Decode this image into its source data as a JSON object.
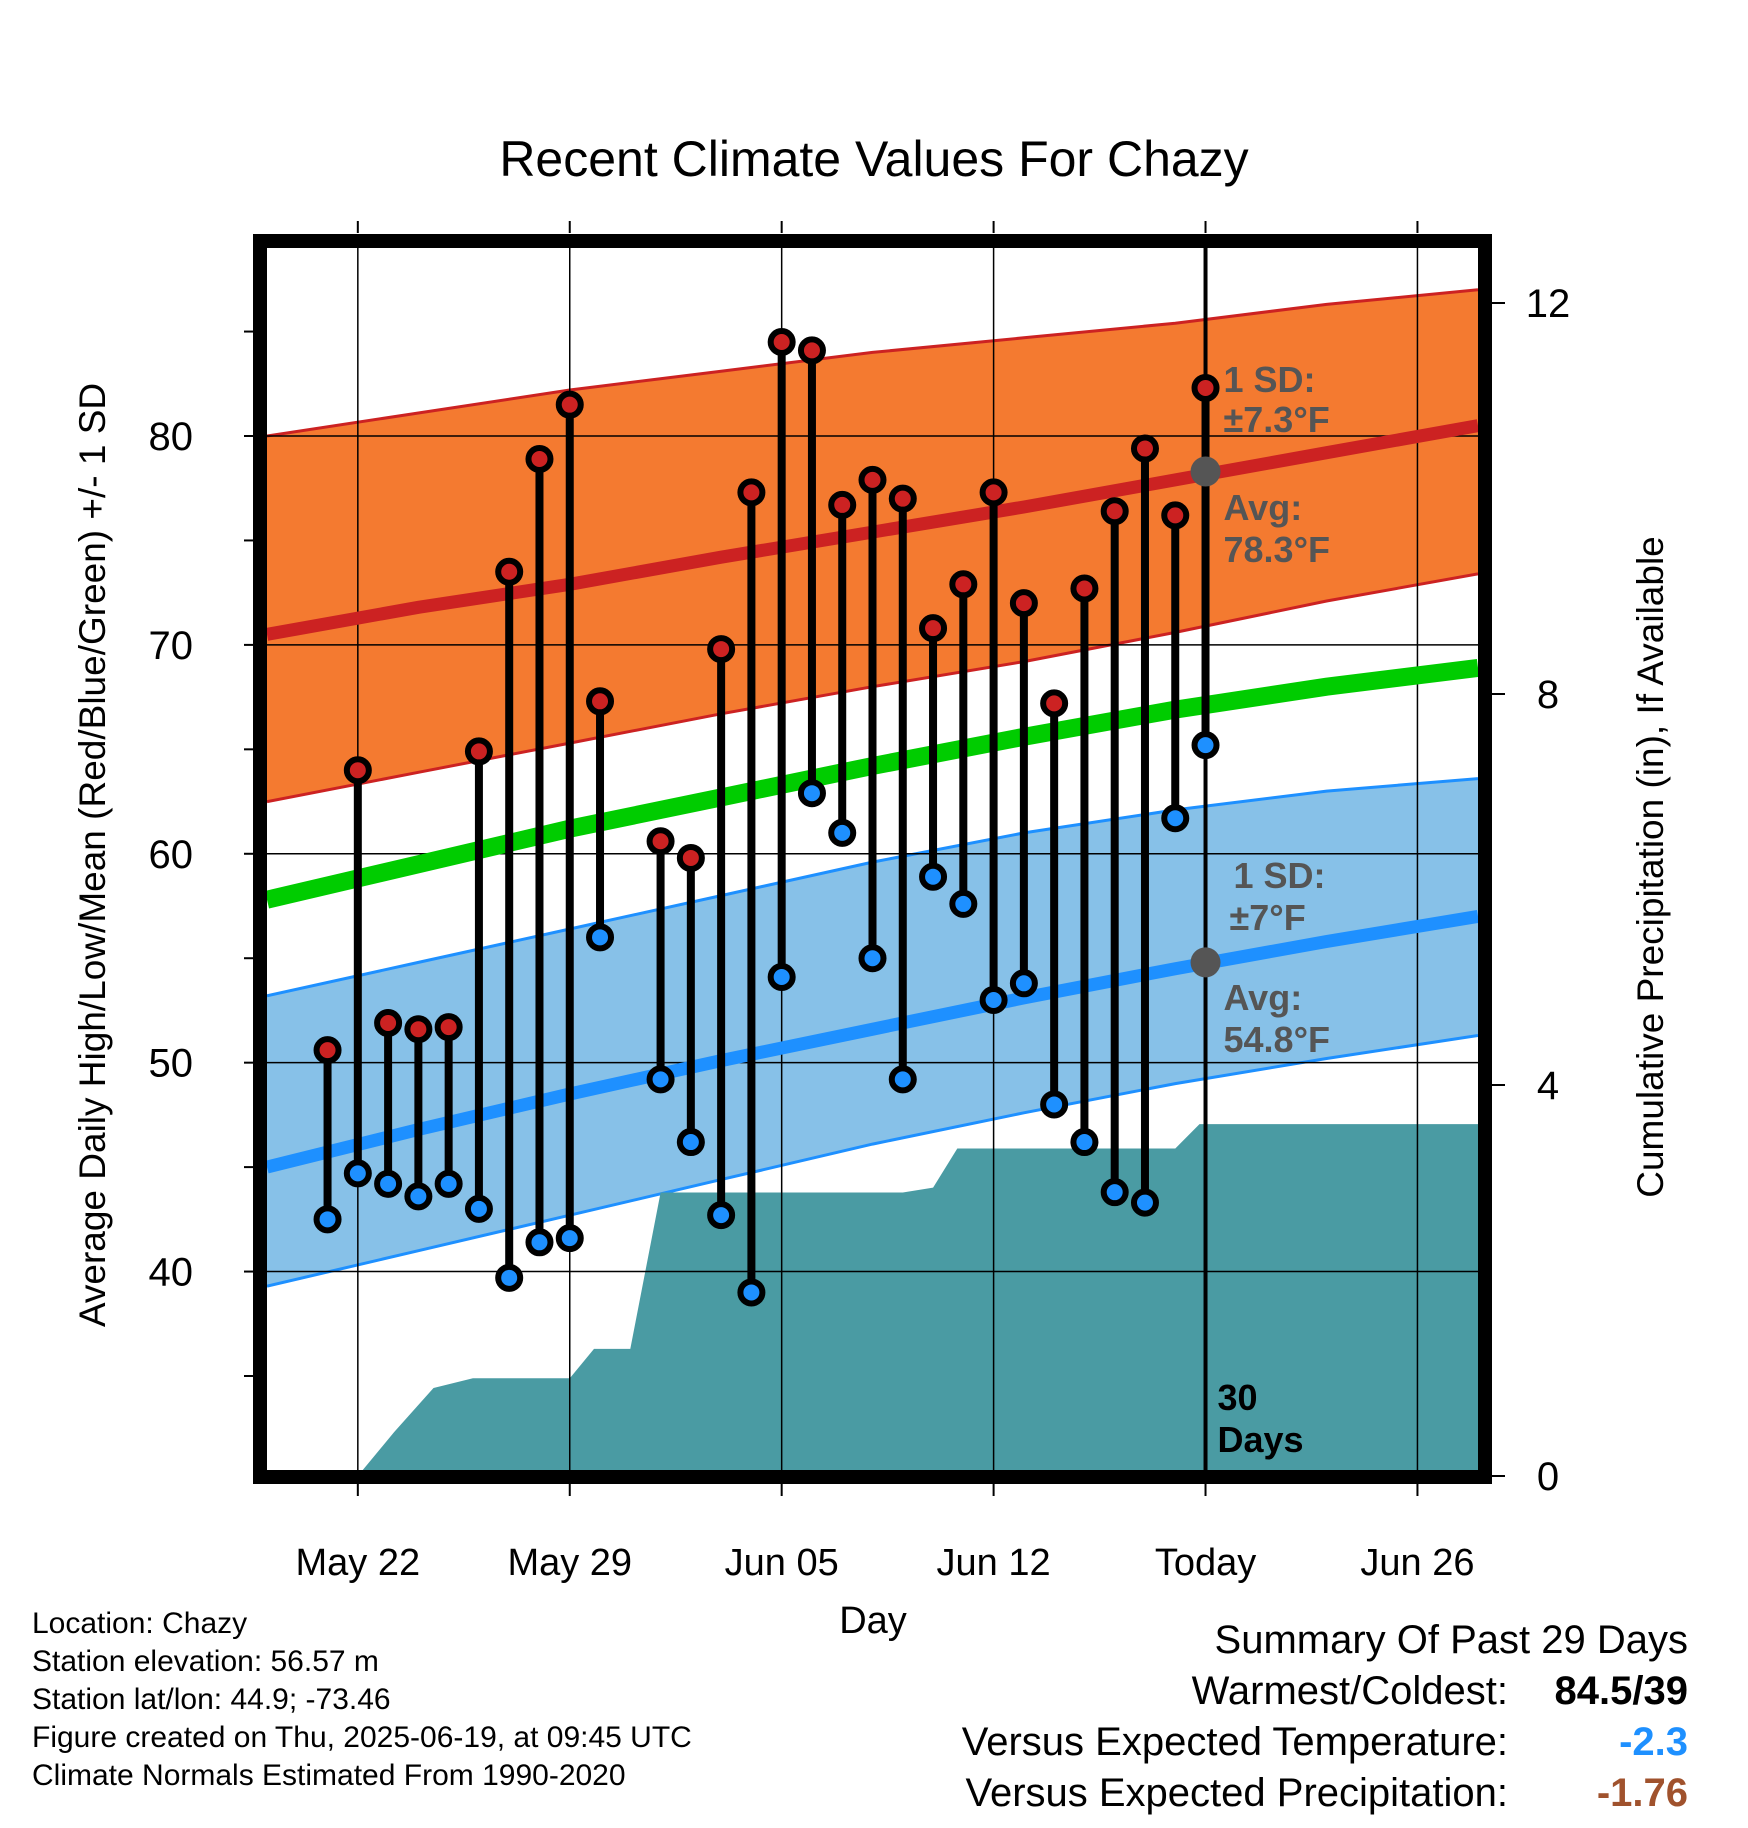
{
  "title": "Recent Climate Values For Chazy",
  "chart_data": {
    "type": "line",
    "title": "Recent Climate Values For Chazy",
    "xlabel": "Day",
    "ylabel": "Average Daily High/Low/Mean (Red/Blue/Green) +/- 1 SD",
    "y2label": "Cumulative Precipitation (in), If Available",
    "x_tick_labels": [
      "May 22",
      "May 29",
      "Jun 05",
      "Jun 12",
      "Today",
      "Jun 26"
    ],
    "x_tick_days": [
      2,
      9,
      16,
      23,
      30,
      37
    ],
    "x_range": [
      -1,
      39
    ],
    "y_range": [
      30.5,
      89
    ],
    "y_ticks": [
      40,
      50,
      60,
      70,
      80
    ],
    "y2_range": [
      0,
      24
    ],
    "y2_ticks": [
      0,
      4,
      8,
      12
    ],
    "today_day": 30,
    "normals": {
      "days": [
        -1,
        4,
        9,
        14,
        19,
        24,
        29,
        34,
        39
      ],
      "high_mean": [
        70.5,
        71.8,
        72.9,
        74.2,
        75.4,
        76.6,
        77.9,
        79.2,
        80.5
      ],
      "high_upper": [
        80.0,
        81.1,
        82.2,
        83.1,
        84.0,
        84.7,
        85.4,
        86.3,
        87.0
      ],
      "high_lower": [
        62.5,
        63.9,
        65.3,
        66.7,
        68.0,
        69.2,
        70.6,
        72.1,
        73.4
      ],
      "mean": [
        57.8,
        59.5,
        61.2,
        62.7,
        64.2,
        65.6,
        66.9,
        68.0,
        68.9
      ],
      "low_mean": [
        45.0,
        46.8,
        48.5,
        50.1,
        51.6,
        53.1,
        54.5,
        55.8,
        57.0
      ],
      "low_upper": [
        53.2,
        54.8,
        56.4,
        58.0,
        59.6,
        61.0,
        62.1,
        63.0,
        63.6
      ],
      "low_lower": [
        39.3,
        41.0,
        42.7,
        44.4,
        46.1,
        47.6,
        49.0,
        50.2,
        51.3
      ]
    },
    "series": [
      {
        "name": "Daily High",
        "color": "#cc2222",
        "x": [
          1,
          2,
          3,
          4,
          5,
          6,
          7,
          8,
          9,
          10,
          11,
          12,
          13,
          14,
          15,
          16,
          17,
          18,
          19,
          20,
          21,
          22,
          23,
          24,
          25,
          26,
          27,
          28,
          29
        ],
        "values": [
          50.6,
          64.0,
          51.9,
          51.6,
          51.7,
          64.9,
          73.5,
          78.9,
          81.5,
          67.3,
          null,
          60.6,
          59.8,
          69.8,
          77.3,
          84.5,
          84.1,
          76.7,
          77.9,
          77.0,
          70.8,
          72.9,
          77.3,
          72.0,
          67.2,
          72.7,
          76.4,
          79.4,
          76.2
        ]
      },
      {
        "name": "Daily Low",
        "color": "#1e90ff",
        "x": [
          1,
          2,
          3,
          4,
          5,
          6,
          7,
          8,
          9,
          10,
          11,
          12,
          13,
          14,
          15,
          16,
          17,
          18,
          19,
          20,
          21,
          22,
          23,
          24,
          25,
          26,
          27,
          28,
          29
        ],
        "values": [
          42.5,
          44.7,
          44.2,
          43.6,
          44.2,
          43.0,
          39.7,
          41.4,
          41.6,
          56.0,
          null,
          49.2,
          46.2,
          42.7,
          39.0,
          54.1,
          62.9,
          61.0,
          55.0,
          49.2,
          58.9,
          57.6,
          53.0,
          53.8,
          48.0,
          46.2,
          43.8,
          43.3,
          61.7
        ]
      }
    ],
    "extra_high_point": {
      "day": 30,
      "high": 82.3,
      "low": 65.2
    },
    "precipitation": {
      "days": [
        -1,
        1,
        2,
        3.2,
        4.5,
        5.8,
        7,
        8,
        9,
        9.8,
        11,
        12,
        13,
        14,
        15,
        16,
        17,
        18,
        19,
        20,
        21,
        21.8,
        23,
        24,
        25,
        26,
        27,
        28,
        29,
        29.8,
        31,
        33,
        35,
        37,
        39
      ],
      "values": [
        0,
        0,
        0,
        0.45,
        0.9,
        1.0,
        1.0,
        1.0,
        1.0,
        1.3,
        1.3,
        2.9,
        2.9,
        2.9,
        2.9,
        2.9,
        2.9,
        2.9,
        2.9,
        2.9,
        2.95,
        3.35,
        3.35,
        3.35,
        3.35,
        3.35,
        3.35,
        3.35,
        3.35,
        3.6,
        3.6,
        3.6,
        3.6,
        3.6,
        3.6
      ]
    },
    "annotations": {
      "high_sd_label": "1 SD:",
      "high_sd_value": "±7.3°F",
      "high_avg_label": "Avg:",
      "high_avg_value": "78.3°F",
      "high_avg_point": 78.3,
      "low_sd_label": "1 SD:",
      "low_sd_value": "±7°F",
      "low_avg_label": "Avg:",
      "low_avg_value": "54.8°F",
      "low_avg_point": 54.8,
      "days_label_1": "30",
      "days_label_2": "Days"
    },
    "colors": {
      "high_band": "#f47a30",
      "high_line": "#cc2222",
      "mean_line": "#00cc00",
      "low_band": "#87c1e8",
      "low_line": "#1e90ff",
      "precip": "#4a9ba3",
      "annotation": "#555555",
      "marker_high": "#cc2222",
      "marker_low": "#1e90ff"
    }
  },
  "footer": {
    "location": "Location: Chazy",
    "elevation": "Station elevation: 56.57 m",
    "latlon": "Station lat/lon: 44.9; -73.46",
    "created": "Figure created on Thu, 2025-06-19, at 09:45 UTC",
    "normals": "Climate Normals Estimated From 1990-2020"
  },
  "summary": {
    "title": "Summary Of Past 29 Days",
    "warmest_label": "Warmest/Coldest:",
    "warmest_value": "84.5/39",
    "temp_label": "Versus Expected Temperature:",
    "temp_value": "-2.3",
    "temp_color": "#1e90ff",
    "precip_label": "Versus Expected Precipitation:",
    "precip_value": "-1.76",
    "precip_color": "#a0522d"
  }
}
